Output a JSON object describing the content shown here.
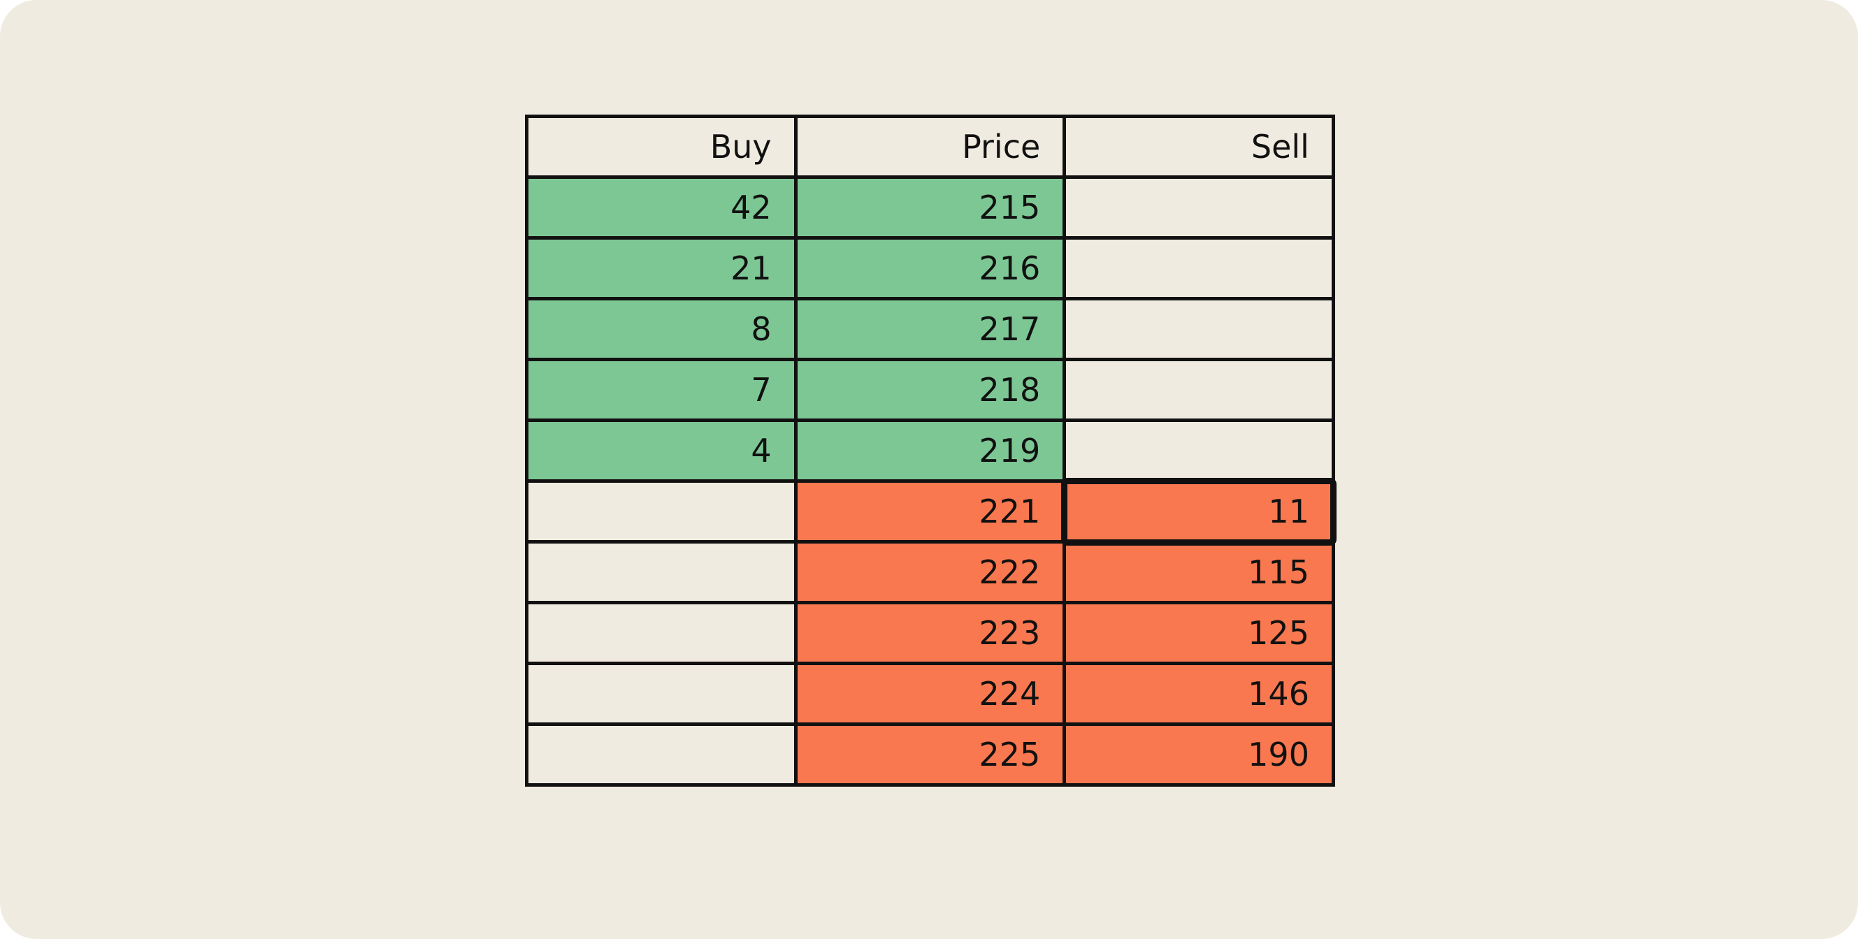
{
  "colors": {
    "background": "#f0ebe0",
    "bid": "#7dc794",
    "ask": "#fa7850",
    "border": "#111111"
  },
  "order_book": {
    "headers": {
      "buy": "Buy",
      "price": "Price",
      "sell": "Sell"
    },
    "rows": [
      {
        "buy": "42",
        "price": "215",
        "sell": ""
      },
      {
        "buy": "21",
        "price": "216",
        "sell": ""
      },
      {
        "buy": "8",
        "price": "217",
        "sell": ""
      },
      {
        "buy": "7",
        "price": "218",
        "sell": ""
      },
      {
        "buy": "4",
        "price": "219",
        "sell": ""
      },
      {
        "buy": "",
        "price": "221",
        "sell": "11"
      },
      {
        "buy": "",
        "price": "222",
        "sell": "115"
      },
      {
        "buy": "",
        "price": "223",
        "sell": "125"
      },
      {
        "buy": "",
        "price": "224",
        "sell": "146"
      },
      {
        "buy": "",
        "price": "225",
        "sell": "190"
      }
    ],
    "highlighted_cell": {
      "row": 5,
      "column": "sell"
    }
  }
}
